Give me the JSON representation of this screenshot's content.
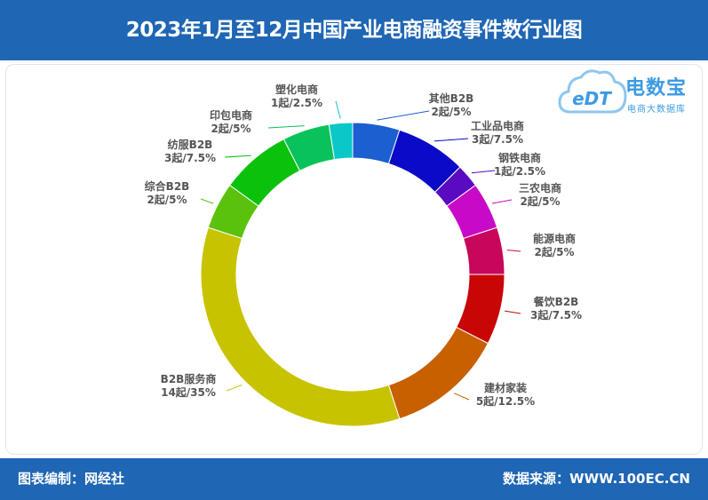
{
  "title": "2023年1月至12月中国产业电商融资事件数行业图",
  "footer": {
    "left": "图表编制：网经社",
    "right": "数据来源：WWW.100EC.CN"
  },
  "logo": {
    "name": "电数宝",
    "mark": "eDT",
    "subtitle": "电商大数据库"
  },
  "colors": {
    "header": "#1f66b4",
    "label_text": "#555555"
  },
  "chart_data": {
    "type": "pie",
    "donut": true,
    "start_angle_deg": 0,
    "direction": "clockwise",
    "legend": "none",
    "unit": "起",
    "slices": [
      {
        "name": "其他B2B",
        "value": 2,
        "percent": "5%",
        "label_line1": "其他B2B",
        "label_line2": "2起/5%",
        "color": "#1b5fd0"
      },
      {
        "name": "工业品电商",
        "value": 3,
        "percent": "7.5%",
        "label_line1": "工业品电商",
        "label_line2": "3起/7.5%",
        "color": "#0a0ac8"
      },
      {
        "name": "钢铁电商",
        "value": 1,
        "percent": "2.5%",
        "label_line1": "钢铁电商",
        "label_line2": "1起/2.5%",
        "color": "#5a0bc2"
      },
      {
        "name": "三农电商",
        "value": 2,
        "percent": "5%",
        "label_line1": "三农电商",
        "label_line2": "2起/5%",
        "color": "#c80ac8"
      },
      {
        "name": "能源电商",
        "value": 2,
        "percent": "5%",
        "label_line1": "能源电商",
        "label_line2": "2起/5%",
        "color": "#c8065c"
      },
      {
        "name": "餐饮B2B",
        "value": 3,
        "percent": "7.5%",
        "label_line1": "餐饮B2B",
        "label_line2": "3起/7.5%",
        "color": "#c80606"
      },
      {
        "name": "建材家装",
        "value": 5,
        "percent": "12.5%",
        "label_line1": "建材家装",
        "label_line2": "5起/12.5%",
        "color": "#c86000"
      },
      {
        "name": "B2B服务商",
        "value": 14,
        "percent": "35%",
        "label_line1": "B2B服务商",
        "label_line2": "14起/35%",
        "color": "#c8c300"
      },
      {
        "name": "综合B2B",
        "value": 2,
        "percent": "5%",
        "label_line1": "综合B2B",
        "label_line2": "2起/5%",
        "color": "#5ac20c"
      },
      {
        "name": "纺服B2B",
        "value": 3,
        "percent": "7.5%",
        "label_line1": "纺服B2B",
        "label_line2": "3起/7.5%",
        "color": "#0ac20c"
      },
      {
        "name": "印包电商",
        "value": 2,
        "percent": "5%",
        "label_line1": "印包电商",
        "label_line2": "2起/5%",
        "color": "#0ac25c"
      },
      {
        "name": "塑化电商",
        "value": 1,
        "percent": "2.5%",
        "label_line1": "塑化电商",
        "label_line2": "1起/2.5%",
        "color": "#0ac8c8"
      }
    ]
  }
}
